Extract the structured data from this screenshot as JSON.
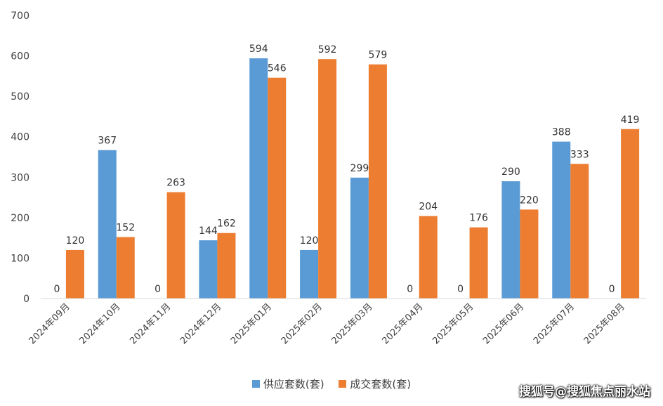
{
  "chart_data": {
    "type": "bar",
    "categories": [
      "2024年09月",
      "2024年10月",
      "2024年11月",
      "2024年12月",
      "2025年01月",
      "2025年02月",
      "2025年03月",
      "2025年04月",
      "2025年05月",
      "2025年06月",
      "2025年07月",
      "2025年08月"
    ],
    "series": [
      {
        "name": "供应套数(套)",
        "color": "#5B9BD5",
        "values": [
          0,
          367,
          0,
          144,
          594,
          120,
          299,
          0,
          0,
          290,
          388,
          0
        ]
      },
      {
        "name": "成交套数(套)",
        "color": "#ED7D31",
        "values": [
          120,
          152,
          263,
          162,
          546,
          592,
          579,
          204,
          176,
          220,
          333,
          419
        ]
      }
    ],
    "ylim": [
      0,
      700
    ],
    "yticks": [
      0,
      100,
      200,
      300,
      400,
      500,
      600,
      700
    ],
    "grid": false,
    "legend_position": "bottom",
    "title": "",
    "xlabel": "",
    "ylabel": ""
  },
  "watermark": "搜狐号@搜狐焦点丽水站"
}
